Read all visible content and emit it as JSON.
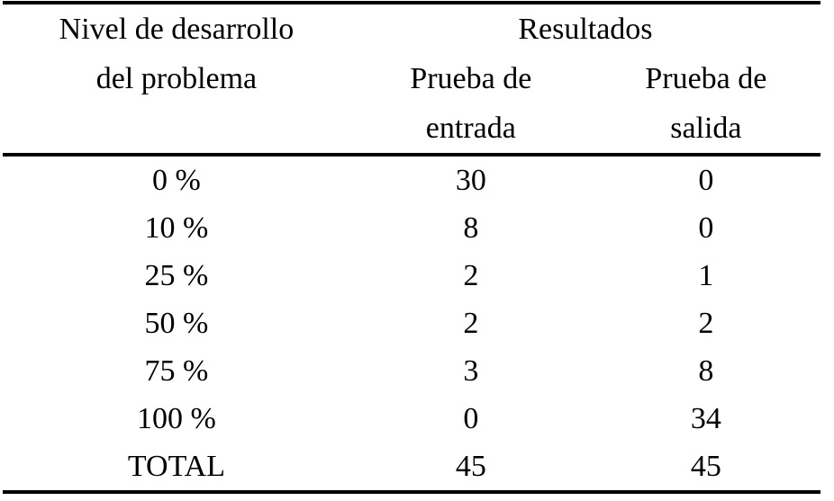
{
  "page": {
    "background_color": "#ffffff",
    "text_color": "#000000",
    "rule_color": "#000000"
  },
  "table": {
    "header": {
      "level_line1": "Nivel de desarrollo",
      "level_line2": "del problema",
      "group_label": "Resultados",
      "entrada_line1": "Prueba de",
      "entrada_line2": "entrada",
      "salida_line1": "Prueba de",
      "salida_line2": "salida"
    },
    "rows": [
      {
        "level": "0 %",
        "entrada": "30",
        "salida": "0"
      },
      {
        "level": "10 %",
        "entrada": "8",
        "salida": "0"
      },
      {
        "level": "25 %",
        "entrada": "2",
        "salida": "1"
      },
      {
        "level": "50 %",
        "entrada": "2",
        "salida": "2"
      },
      {
        "level": "75 %",
        "entrada": "3",
        "salida": "8"
      },
      {
        "level": "100 %",
        "entrada": "0",
        "salida": "34"
      },
      {
        "level": "TOTAL",
        "entrada": "45",
        "salida": "45"
      }
    ]
  },
  "chart_data": {
    "type": "table",
    "group_header": "Resultados",
    "columns": [
      "Nivel de desarrollo del problema",
      "Prueba de entrada",
      "Prueba de salida"
    ],
    "rows": [
      [
        "0 %",
        30,
        0
      ],
      [
        "10 %",
        8,
        0
      ],
      [
        "25 %",
        2,
        1
      ],
      [
        "50 %",
        2,
        2
      ],
      [
        "75 %",
        3,
        8
      ],
      [
        "100 %",
        0,
        34
      ],
      [
        "TOTAL",
        45,
        45
      ]
    ]
  }
}
